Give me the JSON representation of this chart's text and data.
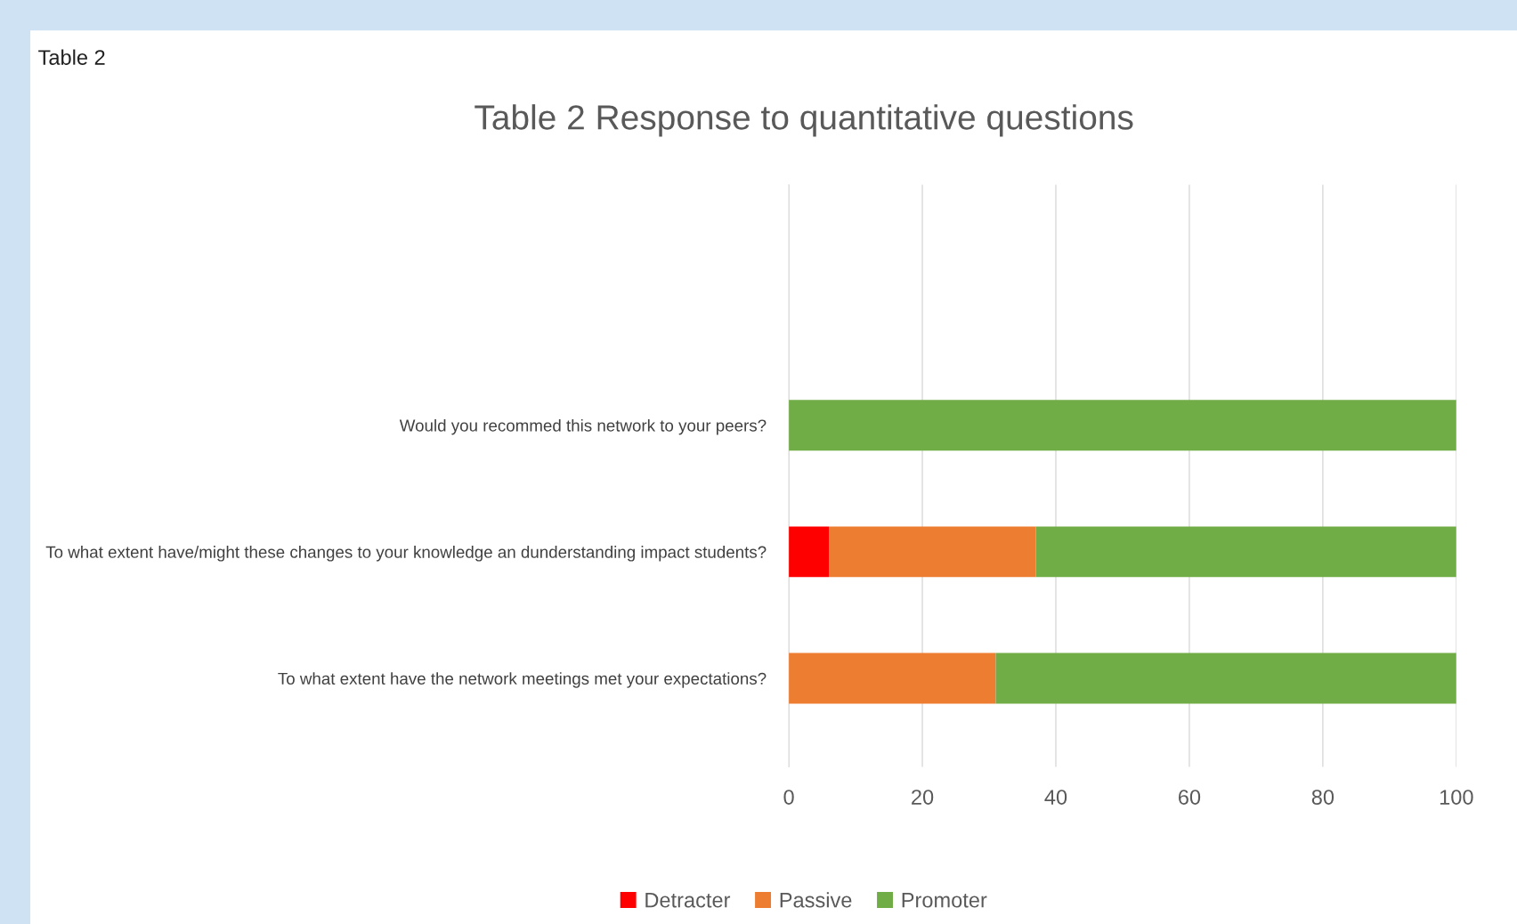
{
  "chart_data": {
    "type": "bar",
    "orientation": "horizontal",
    "stacked": true,
    "title": "Table 2 Response to quantitative questions",
    "annotations": [
      "Table 2"
    ],
    "categories": [
      "Would you recommed this network to your peers?",
      "To what extent have/might these changes to your knowledge an dunderstanding impact students?",
      "To what extent have the network meetings met your expectations?"
    ],
    "series": [
      {
        "name": "Detracter",
        "color": "#ff0000",
        "values": [
          0,
          6,
          0
        ]
      },
      {
        "name": "Passive",
        "color": "#ed7d31",
        "values": [
          0,
          31,
          31
        ]
      },
      {
        "name": "Promoter",
        "color": "#70ad47",
        "values": [
          100,
          63,
          69
        ]
      }
    ],
    "xlim": [
      0,
      100
    ],
    "xticks": [
      0,
      20,
      40,
      60,
      80,
      100
    ],
    "grid": "x",
    "legend": "bottom"
  }
}
